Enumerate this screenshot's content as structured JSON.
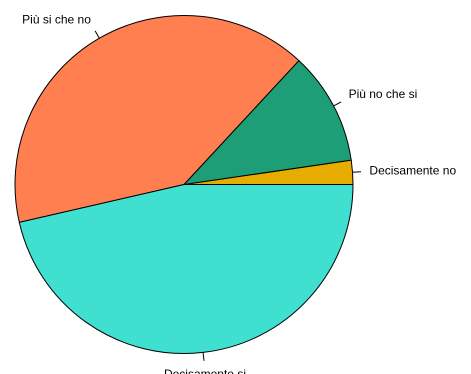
{
  "chart_data": {
    "type": "pie",
    "direction": "counterclockwise",
    "start": "3 o'clock",
    "labels": [
      "Decisamente no",
      "Più no che si",
      "Più si che no",
      "Decisamente si"
    ],
    "values": [
      2.3,
      10.8,
      40.5,
      46.4
    ],
    "colors": [
      "#E6AD00",
      "#1D9E77",
      "#FF7F50",
      "#40E0D0"
    ],
    "title": ""
  }
}
